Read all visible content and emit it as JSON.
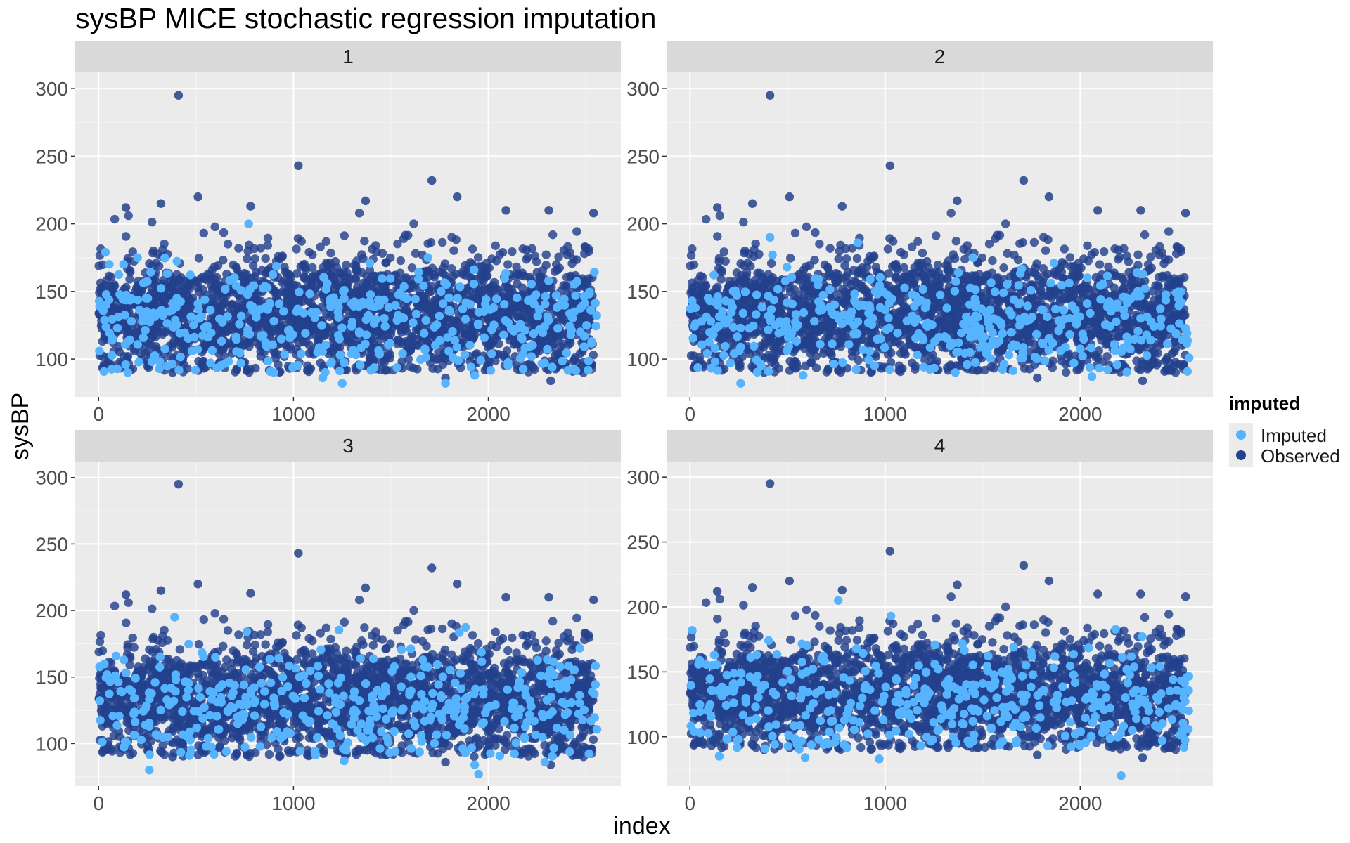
{
  "chart_data": {
    "type": "scatter",
    "title": "sysBP MICE stochastic regression imputation",
    "xlabel": "index",
    "ylabel": "sysBP",
    "xlim": [
      -120,
      2680
    ],
    "x_ticks": [
      0,
      1000,
      2000
    ],
    "x_tick_labels": [
      "0",
      "1000",
      "2000"
    ],
    "panels": [
      {
        "label": "1",
        "ylim": [
          72,
          312
        ],
        "y_ticks": [
          100,
          150,
          200,
          250,
          300
        ],
        "y_tick_labels": [
          "100",
          "150",
          "200",
          "250",
          "300"
        ]
      },
      {
        "label": "2",
        "ylim": [
          72,
          312
        ],
        "y_ticks": [
          100,
          150,
          200,
          250,
          300
        ],
        "y_tick_labels": [
          "100",
          "150",
          "200",
          "250",
          "300"
        ]
      },
      {
        "label": "3",
        "ylim": [
          68,
          312
        ],
        "y_ticks": [
          100,
          150,
          200,
          250,
          300
        ],
        "y_tick_labels": [
          "100",
          "150",
          "200",
          "250",
          "300"
        ]
      },
      {
        "label": "4",
        "ylim": [
          62,
          312
        ],
        "y_ticks": [
          100,
          150,
          200,
          250,
          300
        ],
        "y_tick_labels": [
          "100",
          "150",
          "200",
          "250",
          "300"
        ]
      }
    ],
    "legend": {
      "title": "imputed",
      "position": "right",
      "entries": [
        {
          "name": "Imputed",
          "color": "#56B4FF"
        },
        {
          "name": "Observed",
          "color": "#23418C"
        }
      ]
    },
    "series": [
      {
        "name": "Observed",
        "color": "#23418C",
        "approx_count": 2500,
        "y_mean": 132,
        "y_sd": 22
      },
      {
        "name": "Imputed",
        "color": "#56B4FF",
        "approx_count": 400,
        "y_mean": 127,
        "y_sd": 20
      }
    ],
    "observed_outliers": [
      {
        "x": 410,
        "y": 295
      },
      {
        "x": 1025,
        "y": 243
      },
      {
        "x": 1710,
        "y": 232
      },
      {
        "x": 510,
        "y": 220
      },
      {
        "x": 1840,
        "y": 220
      },
      {
        "x": 1370,
        "y": 217
      },
      {
        "x": 320,
        "y": 215
      },
      {
        "x": 780,
        "y": 213
      },
      {
        "x": 2310,
        "y": 210
      },
      {
        "x": 2090,
        "y": 210
      },
      {
        "x": 140,
        "y": 212
      },
      {
        "x": 2540,
        "y": 208
      },
      {
        "x": 2320,
        "y": 84
      },
      {
        "x": 1780,
        "y": 86
      },
      {
        "x": 380,
        "y": 90
      }
    ],
    "imputed_extremes": [
      [
        {
          "x": 1250,
          "y": 82
        },
        {
          "x": 1780,
          "y": 82
        },
        {
          "x": 1150,
          "y": 86
        },
        {
          "x": 1930,
          "y": 88
        },
        {
          "x": 150,
          "y": 90
        },
        {
          "x": 900,
          "y": 90
        },
        {
          "x": 200,
          "y": 175
        },
        {
          "x": 770,
          "y": 200
        },
        {
          "x": 1690,
          "y": 175
        }
      ],
      [
        {
          "x": 260,
          "y": 82
        },
        {
          "x": 2060,
          "y": 87
        },
        {
          "x": 1360,
          "y": 90
        },
        {
          "x": 580,
          "y": 88
        },
        {
          "x": 410,
          "y": 190
        },
        {
          "x": 860,
          "y": 186
        },
        {
          "x": 1450,
          "y": 175
        }
      ],
      [
        {
          "x": 260,
          "y": 80
        },
        {
          "x": 1950,
          "y": 77
        },
        {
          "x": 1930,
          "y": 84
        },
        {
          "x": 1260,
          "y": 87
        },
        {
          "x": 2290,
          "y": 86
        },
        {
          "x": 390,
          "y": 195
        },
        {
          "x": 760,
          "y": 184
        }
      ],
      [
        {
          "x": 2210,
          "y": 70
        },
        {
          "x": 970,
          "y": 83
        },
        {
          "x": 590,
          "y": 84
        },
        {
          "x": 150,
          "y": 85
        },
        {
          "x": 760,
          "y": 205
        },
        {
          "x": 1030,
          "y": 193
        }
      ]
    ]
  }
}
